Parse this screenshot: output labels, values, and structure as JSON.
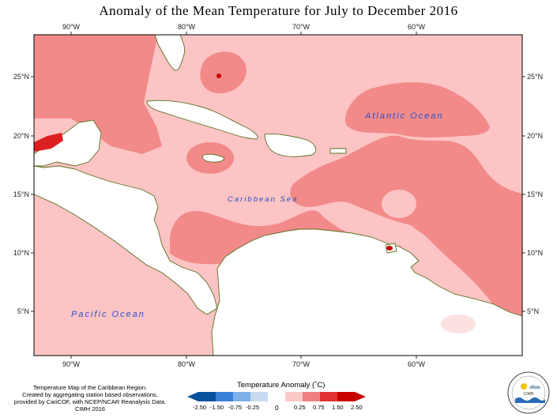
{
  "title": "Anomaly of the Mean Temperature for July to December 2016",
  "axes": {
    "lon_ticks": [
      "90°W",
      "80°W",
      "70°W",
      "60°W"
    ],
    "lat_ticks": [
      "25°N",
      "20°N",
      "15°N",
      "10°N",
      "5°N"
    ]
  },
  "ocean_labels": {
    "atlantic": "Atlantic Ocean",
    "caribbean": "Caribbean Sea",
    "pacific": "Pacific Ocean"
  },
  "credits": [
    "Temperature Map of the Caribbean Region.",
    "Created by aggregating station based observations,",
    "provided by CariCOF, with NCEP/NCAR Reanalysis Data.",
    "CIMH 2016"
  ],
  "legend": {
    "title": "Temperature Anomaly (˚C)",
    "labels": [
      "-2.50",
      "-1.50",
      "-0.75",
      "-0.25",
      "0",
      "0.25",
      "0.75",
      "1.50",
      "2.50"
    ],
    "colors": [
      "#08519c",
      "#3a7fd8",
      "#7fb0ea",
      "#c6dbef",
      "#ffffff",
      "#fcc9c9",
      "#f08080",
      "#e23232",
      "#c80000"
    ]
  },
  "logo": {
    "text": "CIMH"
  }
}
